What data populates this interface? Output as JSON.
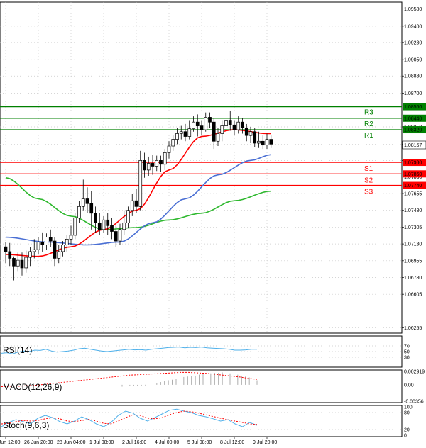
{
  "chart_data": {
    "type": "candlestick",
    "instrument_timeframe": "H4",
    "price_axis": {
      "range": [
        1.062,
        1.0965
      ],
      "ticks": [
        "1.09580",
        "1.09400",
        "1.09230",
        "1.09050",
        "1.08880",
        "1.08700",
        "1.08350",
        "1.08170",
        "1.08000",
        "1.07830",
        "1.07655",
        "1.07480",
        "1.07305",
        "1.07130",
        "1.06955",
        "1.06780",
        "1.06605",
        "1.06255"
      ]
    },
    "x_axis": {
      "labels": [
        "25 Jun 12:00",
        "26 Jun 20:00",
        "28 Jun 04:00",
        "1 Jul 08:00",
        "2 Jul 16:00",
        "4 Jul 00:00",
        "5 Jul 08:00",
        "8 Jul 12:00",
        "9 Jul 20:00"
      ],
      "label_bar_index": [
        0,
        8,
        16,
        24,
        32,
        40,
        48,
        56,
        64
      ]
    },
    "current_price": "1.08167",
    "levels": [
      {
        "name": "R3",
        "price": 1.0856,
        "label": "1.08560",
        "color": "#008000"
      },
      {
        "name": "R2",
        "price": 1.0844,
        "label": "1.08440",
        "color": "#008000"
      },
      {
        "name": "R1",
        "price": 1.0832,
        "label": "1.08320",
        "color": "#008000"
      },
      {
        "name": "S1",
        "price": 1.0798,
        "label": "1.07980",
        "color": "#ff0000"
      },
      {
        "name": "S2",
        "price": 1.0786,
        "label": "1.07860",
        "color": "#ff0000"
      },
      {
        "name": "S3",
        "price": 1.0774,
        "label": "1.07740",
        "color": "#ff0000"
      }
    ],
    "candles": [
      [
        1.071,
        1.0705,
        1.0715,
        1.0693
      ],
      [
        1.0705,
        1.0698,
        1.0714,
        1.069
      ],
      [
        1.0698,
        1.069,
        1.07,
        1.0675
      ],
      [
        1.069,
        1.0696,
        1.0704,
        1.0684
      ],
      [
        1.0696,
        1.0688,
        1.0704,
        1.068
      ],
      [
        1.0688,
        1.0699,
        1.0706,
        1.0683
      ],
      [
        1.0699,
        1.0705,
        1.071,
        1.069
      ],
      [
        1.0705,
        1.0707,
        1.0718,
        1.0698
      ],
      [
        1.0707,
        1.0715,
        1.072,
        1.0702
      ],
      [
        1.0715,
        1.0712,
        1.0725,
        1.0705
      ],
      [
        1.0712,
        1.072,
        1.0724,
        1.0707
      ],
      [
        1.072,
        1.0716,
        1.0728,
        1.071
      ],
      [
        1.0716,
        1.0698,
        1.072,
        1.069
      ],
      [
        1.0698,
        1.0705,
        1.0712,
        1.0693
      ],
      [
        1.0705,
        1.0712,
        1.0716,
        1.07
      ],
      [
        1.0712,
        1.0718,
        1.0722,
        1.0705
      ],
      [
        1.0718,
        1.0722,
        1.0732,
        1.0712
      ],
      [
        1.0722,
        1.074,
        1.0745,
        1.0718
      ],
      [
        1.074,
        1.0752,
        1.0758,
        1.0735
      ],
      [
        1.0752,
        1.076,
        1.078,
        1.0748
      ],
      [
        1.076,
        1.0755,
        1.0772,
        1.0745
      ],
      [
        1.0755,
        1.0745,
        1.0768,
        1.0728
      ],
      [
        1.0745,
        1.0735,
        1.0752,
        1.0725
      ],
      [
        1.0735,
        1.0728,
        1.0745,
        1.0722
      ],
      [
        1.0728,
        1.0738,
        1.0742,
        1.0725
      ],
      [
        1.0738,
        1.0732,
        1.0745,
        1.0722
      ],
      [
        1.0732,
        1.0726,
        1.074,
        1.0718
      ],
      [
        1.0726,
        1.0716,
        1.0732,
        1.071
      ],
      [
        1.0716,
        1.0728,
        1.0734,
        1.0712
      ],
      [
        1.0728,
        1.0735,
        1.0748,
        1.0722
      ],
      [
        1.0735,
        1.0748,
        1.0752,
        1.073
      ],
      [
        1.0748,
        1.0758,
        1.0765,
        1.0742
      ],
      [
        1.0758,
        1.0752,
        1.077,
        1.0745
      ],
      [
        1.0752,
        1.08,
        1.081,
        1.0748
      ],
      [
        1.08,
        1.079,
        1.0808,
        1.0782
      ],
      [
        1.079,
        1.0797,
        1.0804,
        1.0784
      ],
      [
        1.0797,
        1.0794,
        1.0806,
        1.0785
      ],
      [
        1.0794,
        1.08,
        1.0805,
        1.0789
      ],
      [
        1.08,
        1.0796,
        1.0805,
        1.0788
      ],
      [
        1.0796,
        1.0808,
        1.0812,
        1.079
      ],
      [
        1.0808,
        1.0815,
        1.082,
        1.0802
      ],
      [
        1.0815,
        1.0822,
        1.0826,
        1.081
      ],
      [
        1.0822,
        1.0828,
        1.0834,
        1.0817
      ],
      [
        1.0828,
        1.083,
        1.0836,
        1.0822
      ],
      [
        1.083,
        1.0825,
        1.0838,
        1.082
      ],
      [
        1.0825,
        1.0833,
        1.0842,
        1.0822
      ],
      [
        1.0833,
        1.084,
        1.0846,
        1.083
      ],
      [
        1.084,
        1.0836,
        1.0848,
        1.0825
      ],
      [
        1.0836,
        1.0832,
        1.0842,
        1.0826
      ],
      [
        1.0832,
        1.0845,
        1.085,
        1.083
      ],
      [
        1.0845,
        1.084,
        1.085,
        1.0834
      ],
      [
        1.084,
        1.082,
        1.0844,
        1.0812
      ],
      [
        1.082,
        1.0828,
        1.0834,
        1.0815
      ],
      [
        1.0828,
        1.0836,
        1.0842,
        1.082
      ],
      [
        1.0836,
        1.0842,
        1.0846,
        1.083
      ],
      [
        1.0842,
        1.0837,
        1.0852,
        1.0831
      ],
      [
        1.0837,
        1.0832,
        1.0842,
        1.0826
      ],
      [
        1.0832,
        1.084,
        1.0846,
        1.0828
      ],
      [
        1.084,
        1.0834,
        1.0844,
        1.0828
      ],
      [
        1.0834,
        1.0826,
        1.0838,
        1.082
      ],
      [
        1.0826,
        1.083,
        1.0835,
        1.0818
      ],
      [
        1.083,
        1.0818,
        1.0834,
        1.0814
      ],
      [
        1.0818,
        1.082,
        1.083,
        1.0813
      ],
      [
        1.082,
        1.0816,
        1.0826,
        1.0812
      ],
      [
        1.0816,
        1.0822,
        1.0828,
        1.0812
      ],
      [
        1.0822,
        1.0817,
        1.0826,
        1.0813
      ]
    ],
    "ma_fast": {
      "color": "#ff0000",
      "anchors": [
        [
          0,
          1.0702
        ],
        [
          8,
          1.07
        ],
        [
          16,
          1.071
        ],
        [
          24,
          1.0728
        ],
        [
          32,
          1.0748
        ],
        [
          40,
          1.079
        ],
        [
          48,
          1.0825
        ],
        [
          56,
          1.0832
        ],
        [
          64,
          1.0828
        ],
        [
          65,
          1.0828
        ]
      ]
    },
    "ma_medium": {
      "color": "#4a6fd4",
      "anchors": [
        [
          0,
          1.072
        ],
        [
          10,
          1.0715
        ],
        [
          20,
          1.0712
        ],
        [
          28,
          1.0715
        ],
        [
          36,
          1.0735
        ],
        [
          44,
          1.076
        ],
        [
          52,
          1.0785
        ],
        [
          60,
          1.08
        ],
        [
          65,
          1.0806
        ]
      ]
    },
    "ma_slow": {
      "color": "#2eb82e",
      "anchors": [
        [
          0,
          1.0782
        ],
        [
          8,
          1.076
        ],
        [
          16,
          1.0742
        ],
        [
          24,
          1.0728
        ],
        [
          32,
          1.073
        ],
        [
          40,
          1.0738
        ],
        [
          48,
          1.0745
        ],
        [
          56,
          1.0758
        ],
        [
          65,
          1.0768
        ]
      ]
    },
    "rsi": {
      "label": "RSI(14)",
      "ticks": [
        "70",
        "50",
        "30"
      ],
      "range": [
        0,
        100
      ],
      "values": [
        44,
        46,
        42,
        48,
        52,
        50,
        55,
        54,
        58,
        52,
        48,
        50,
        52,
        55,
        60,
        62,
        58,
        55,
        52,
        50,
        52,
        54,
        56,
        58,
        56,
        57,
        55,
        58,
        60,
        62,
        64,
        65,
        66,
        63,
        65,
        64,
        66,
        63,
        62,
        61,
        60,
        58,
        55,
        55,
        56,
        58,
        58
      ]
    },
    "macd": {
      "label": "MACD(12,26,9)",
      "ticks": [
        "0.002919",
        "0.00",
        "-0.00356"
      ],
      "range": [
        -0.00356,
        0.002919
      ],
      "histogram": [
        -0.0004,
        -0.0004,
        -0.0003,
        -0.0003,
        -0.0002,
        -0.0002,
        -0.0001,
        0.0,
        0.0002,
        0.0004,
        0.0006,
        0.0008,
        0.001,
        0.0011,
        0.0013,
        0.0015,
        0.0017,
        0.0018,
        0.0019,
        0.002,
        0.0022,
        0.0023,
        0.0024,
        0.0025,
        0.0026,
        0.0026,
        0.0027,
        0.0026,
        0.0025,
        0.0024,
        0.0022,
        0.002,
        0.0018,
        0.0016,
        0.0013,
        0.001
      ],
      "signal": [
        -0.0004,
        -0.0003,
        -0.0003,
        -0.0002,
        -0.0001,
        0.0001,
        0.0003,
        0.0005,
        0.0007,
        0.0009,
        0.0011,
        0.0013,
        0.0015,
        0.0017,
        0.0019,
        0.0021,
        0.0022,
        0.0023,
        0.0024,
        0.0025,
        0.0026,
        0.0027,
        0.0027,
        0.0026,
        0.0025,
        0.0023,
        0.0021,
        0.0019,
        0.0017,
        0.0014,
        0.0012
      ]
    },
    "stoch": {
      "label": "Stoch(9,6,3)",
      "ticks": [
        "100",
        "80",
        "20",
        "0"
      ],
      "range": [
        0,
        100
      ],
      "k": [
        30,
        45,
        55,
        48,
        40,
        60,
        70,
        62,
        48,
        40,
        50,
        65,
        55,
        40,
        30,
        45,
        70,
        85,
        78,
        60,
        50,
        62,
        75,
        88,
        92,
        85,
        80,
        70,
        65,
        58,
        50,
        55,
        40,
        30,
        45,
        35
      ],
      "d": [
        40,
        42,
        48,
        52,
        50,
        52,
        58,
        62,
        58,
        50,
        48,
        52,
        56,
        50,
        42,
        40,
        50,
        62,
        72,
        70,
        60,
        58,
        62,
        72,
        80,
        85,
        83,
        78,
        72,
        66,
        60,
        55,
        50,
        45,
        40,
        38
      ]
    }
  }
}
